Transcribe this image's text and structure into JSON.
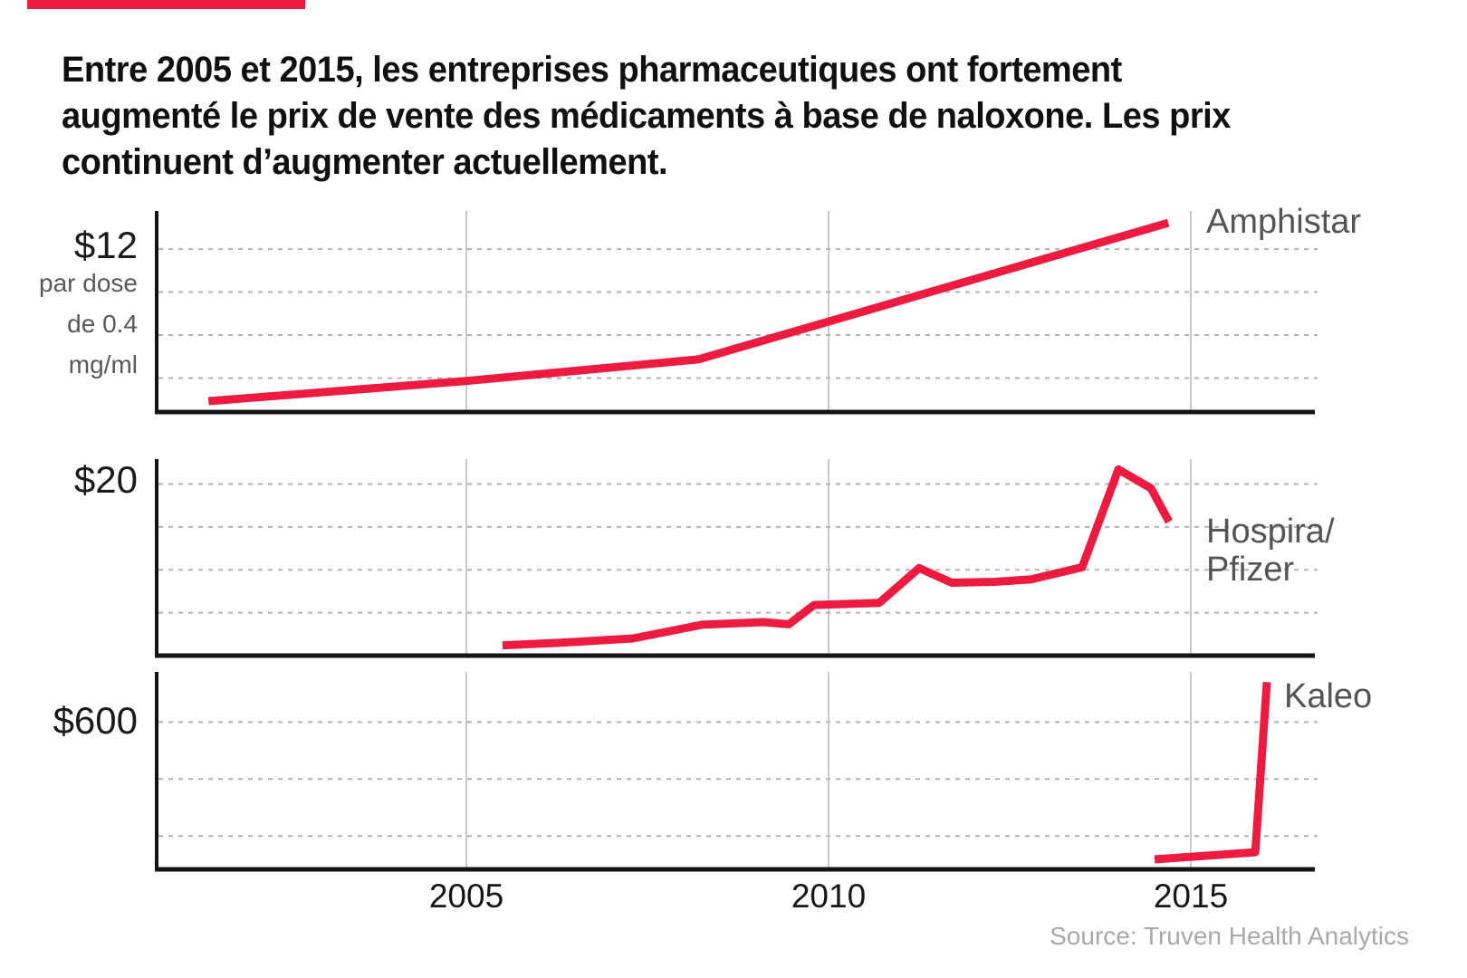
{
  "colors": {
    "accent": "#ee1b41",
    "line": "#ee1b41",
    "year_grid": "#c9c9c9",
    "dashed_grid": "#b3b3b3",
    "axis": "#141414",
    "label_gray": "#545457",
    "source_gray": "#a9a9a9"
  },
  "title": {
    "lines": [
      "Entre 2005 et 2015, les entreprises pharmaceutiques ont fortement",
      "augmenté le prix de vente des médicaments à base de naloxone. Les prix",
      "continuent d’augmenter actuellement."
    ]
  },
  "source": {
    "text": "Source: Truven Health Analytics"
  },
  "chart_data": {
    "type": "line",
    "title": "Entre 2005 et 2015, les entreprises pharmaceutiques ont fortement augmenté le prix de vente des médicaments à base de naloxone. Les prix continuent d’augmenter actuellement.",
    "unit_note": "$ par dose de 0.4 mg/ml",
    "grid": "on",
    "legend_position": "right-of-line",
    "x_axis": {
      "ticks": [
        "2005",
        "2010",
        "2015"
      ],
      "tick_years": [
        2005,
        2010,
        2015
      ],
      "xlim": [
        2000.75,
        2016.7
      ]
    },
    "panels": [
      {
        "company": "Amphistar",
        "label_lines": [
          "Amphistar"
        ],
        "y_label": "$12",
        "y_sublabel_lines": [
          "par dose",
          "de 0.4",
          "mg/ml"
        ],
        "ylim": [
          0.63,
          14.66
        ],
        "gridline_values": [
          3,
          6,
          9,
          12
        ],
        "points": [
          [
            2001.44,
            1.39
          ],
          [
            2005.0,
            2.8
          ],
          [
            2008.2,
            4.3
          ],
          [
            2014.69,
            13.83
          ]
        ]
      },
      {
        "company": "Hospira/Pfizer",
        "label_lines": [
          "Hospira/",
          "Pfizer"
        ],
        "y_label": "$20",
        "y_sublabel_lines": [],
        "ylim": [
          0,
          22.9
        ],
        "gridline_values": [
          5,
          10,
          15,
          20
        ],
        "points": [
          [
            2005.5,
            1.2
          ],
          [
            2006.3,
            1.5
          ],
          [
            2007.3,
            2.0
          ],
          [
            2008.25,
            3.6
          ],
          [
            2009.1,
            3.9
          ],
          [
            2009.45,
            3.65
          ],
          [
            2009.8,
            5.9
          ],
          [
            2010.7,
            6.15
          ],
          [
            2011.25,
            10.2
          ],
          [
            2011.7,
            8.5
          ],
          [
            2012.3,
            8.6
          ],
          [
            2012.8,
            8.9
          ],
          [
            2013.5,
            10.3
          ],
          [
            2014.0,
            21.7
          ],
          [
            2014.45,
            19.5
          ],
          [
            2014.7,
            15.6
          ]
        ]
      },
      {
        "company": "Kaleo",
        "label_lines": [
          "Kaleo"
        ],
        "y_label": "$600",
        "y_sublabel_lines": [],
        "ylim": [
          83,
          776
        ],
        "gridline_values": [
          200,
          400,
          600
        ],
        "points": [
          [
            2014.5,
            118
          ],
          [
            2015.89,
            143
          ],
          [
            2016.05,
            740
          ]
        ]
      }
    ]
  }
}
